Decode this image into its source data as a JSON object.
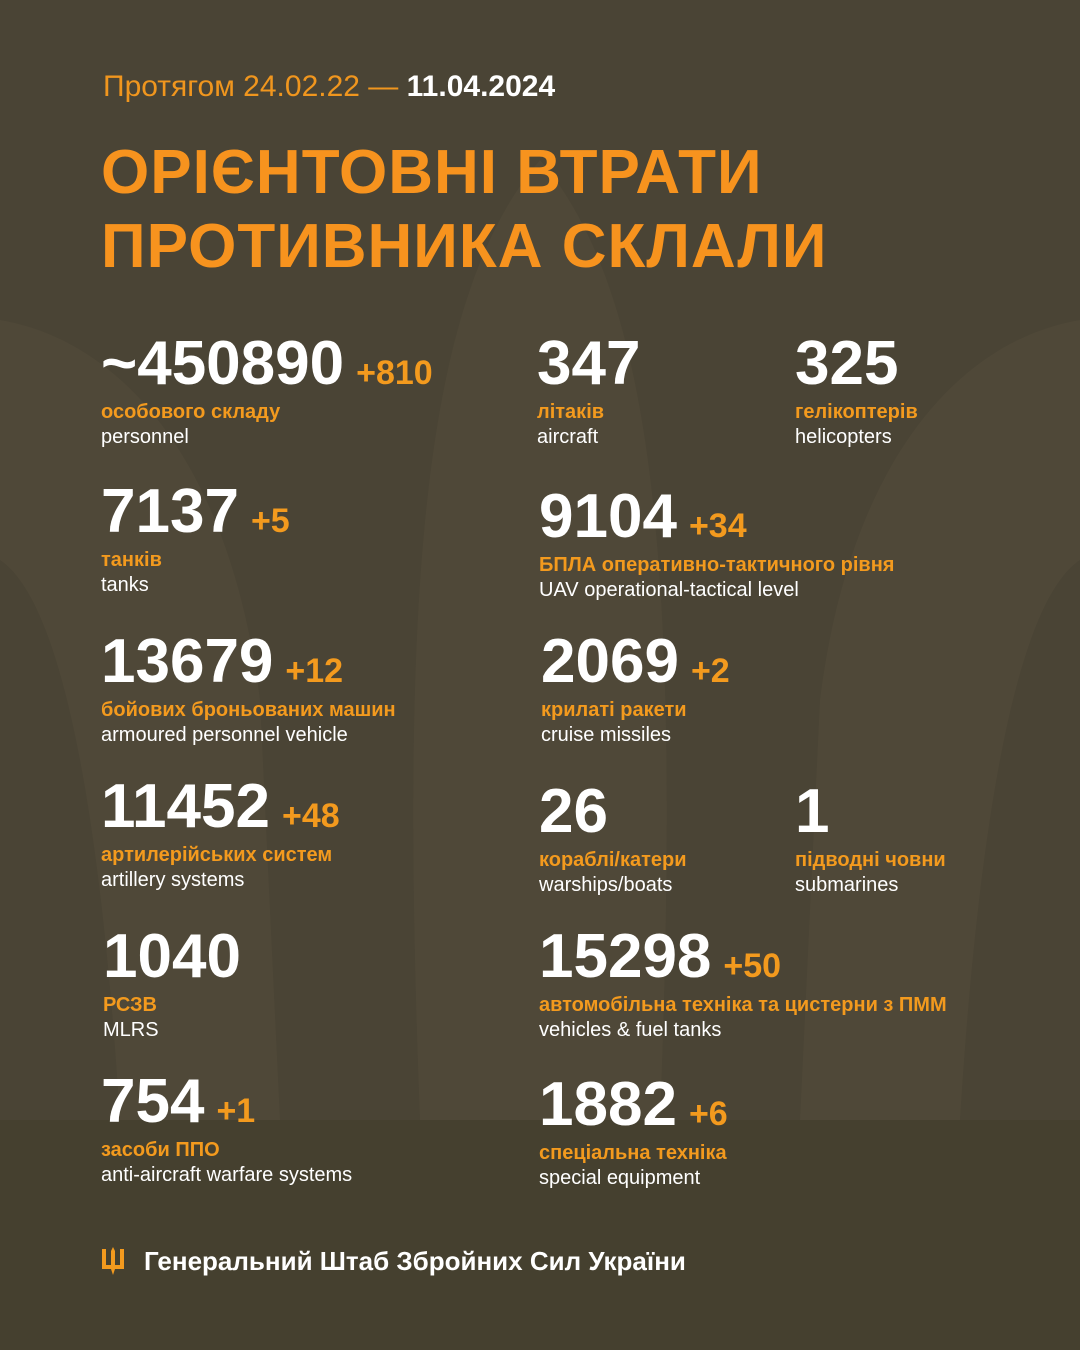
{
  "colors": {
    "background": "#4a4435",
    "accent": "#f39a1e",
    "text": "#ffffff"
  },
  "header": {
    "period_prefix": "Протягом 24.02.22 —",
    "period_end": "11.04.2024",
    "title_line1": "ОРІЄНТОВНІ ВТРАТИ",
    "title_line2": "ПРОТИВНИКА СКЛАЛИ"
  },
  "stats": [
    {
      "value": "~450890",
      "delta": "+810",
      "uk": "особового складу",
      "en": "personnel"
    },
    {
      "value": "347",
      "delta": "",
      "uk": "літаків",
      "en": "aircraft"
    },
    {
      "value": "325",
      "delta": "",
      "uk": "гелікоптерів",
      "en": "helicopters"
    },
    {
      "value": "7137",
      "delta": "+5",
      "uk": "танків",
      "en": "tanks"
    },
    {
      "value": "9104",
      "delta": "+34",
      "uk": "БПЛА оперативно-тактичного рівня",
      "en": "UAV operational-tactical level"
    },
    {
      "value": "13679",
      "delta": "+12",
      "uk": "бойових броньованих машин",
      "en": "armoured personnel vehicle"
    },
    {
      "value": "2069",
      "delta": "+2",
      "uk": "крилаті ракети",
      "en": "cruise missiles"
    },
    {
      "value": "11452",
      "delta": "+48",
      "uk": "артилерійських систем",
      "en": "artillery systems"
    },
    {
      "value": "26",
      "delta": "",
      "uk": "кораблі/катери",
      "en": "warships/boats"
    },
    {
      "value": "1",
      "delta": "",
      "uk": "підводні човни",
      "en": "submarines"
    },
    {
      "value": "1040",
      "delta": "",
      "uk": "РСЗВ",
      "en": "MLRS"
    },
    {
      "value": "15298",
      "delta": "+50",
      "uk": "автомобільна техніка та цистерни з ПММ",
      "en": "vehicles & fuel tanks"
    },
    {
      "value": "754",
      "delta": "+1",
      "uk": "засоби ППО",
      "en": "anti-aircraft warfare systems"
    },
    {
      "value": "1882",
      "delta": "+6",
      "uk": "спеціальна техніка",
      "en": "special equipment"
    }
  ],
  "footer": {
    "icon": "trident-icon",
    "text": "Генеральний Штаб Збройних Сил України"
  }
}
